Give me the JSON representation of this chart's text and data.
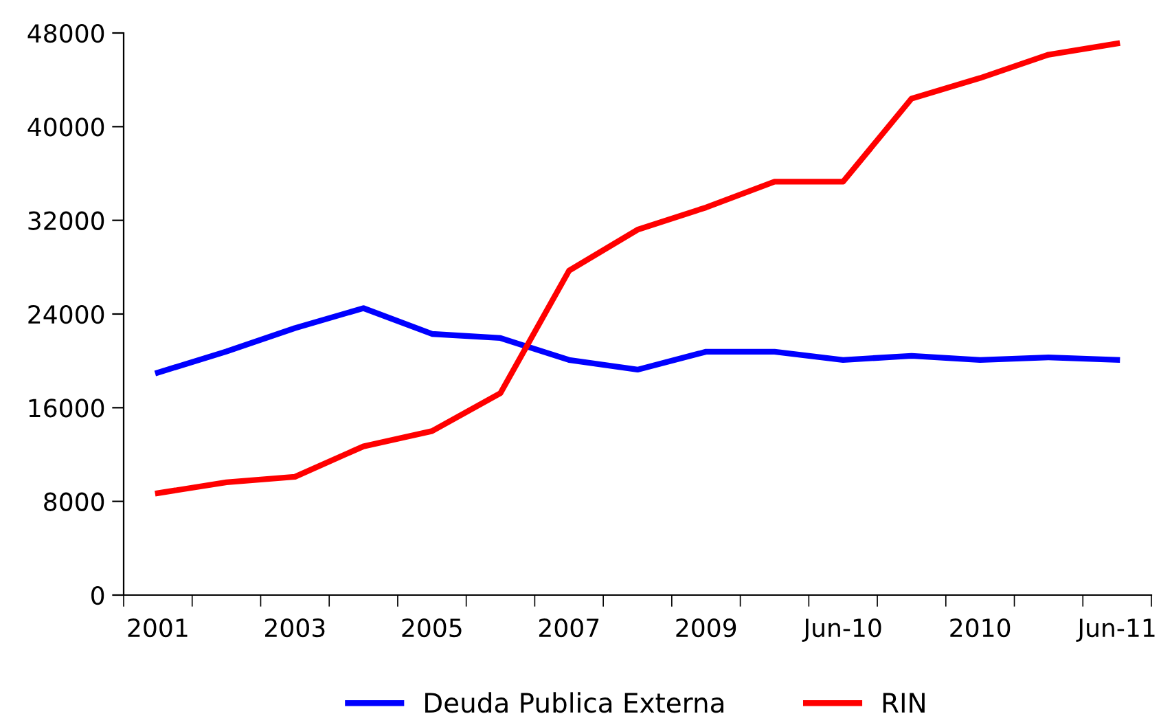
{
  "chart_data": {
    "type": "line",
    "categories": [
      "2001",
      null,
      "2003",
      null,
      "2005",
      null,
      "2007",
      null,
      "2009",
      null,
      "Jun-10",
      null,
      "2010",
      null,
      "Jun-11"
    ],
    "series": [
      {
        "name": "Deuda Publica Externa",
        "color": "#0000ff",
        "values": [
          19000,
          20800,
          22800,
          24500,
          22300,
          21950,
          20080,
          19250,
          20780,
          20780,
          20080,
          20430,
          20080,
          20300,
          20080
        ]
      },
      {
        "name": "RIN",
        "color": "#ff0000",
        "values": [
          8700,
          9630,
          10100,
          12700,
          14000,
          17250,
          27700,
          31200,
          33100,
          35300,
          35300,
          42400,
          44150,
          46150,
          47100
        ]
      }
    ],
    "ylim": [
      0,
      48000
    ],
    "yticks": [
      0,
      8000,
      16000,
      24000,
      32000,
      40000,
      48000
    ],
    "grid": false,
    "legend": "bottom",
    "marker": "none",
    "line_style": "solid"
  }
}
